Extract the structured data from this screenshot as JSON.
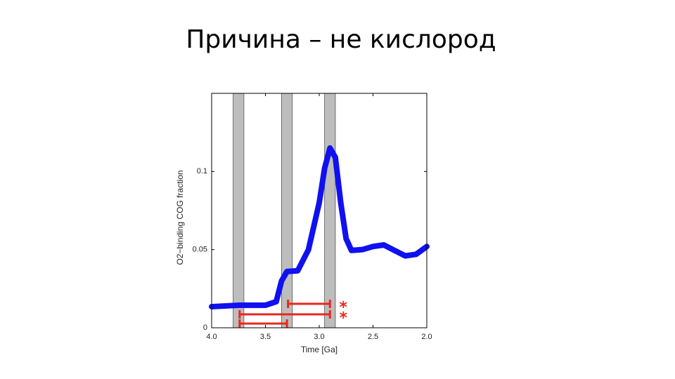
{
  "chart_data": {
    "type": "line",
    "title": "Причина – не кислород",
    "xlabel": "Time [Ga]",
    "ylabel": "O2−binding COG fraction",
    "xlim": [
      4.0,
      2.0
    ],
    "xticks": [
      {
        "value": 4,
        "label": "4.0"
      },
      {
        "value": 3.5,
        "label": "3.5"
      },
      {
        "value": 3,
        "label": "3.0"
      },
      {
        "value": 2.5,
        "label": "2.5"
      },
      {
        "value": 2,
        "label": "2.0"
      }
    ],
    "ylim": [
      0,
      0.15
    ],
    "yticks": [
      0,
      0.05,
      0.1
    ],
    "x": [
      4.0,
      3.75,
      3.5,
      3.4,
      3.35,
      3.3,
      3.2,
      3.1,
      3.0,
      2.95,
      2.9,
      2.85,
      2.8,
      2.75,
      2.7,
      2.6,
      2.5,
      2.4,
      2.3,
      2.2,
      2.1,
      2.0
    ],
    "values": [
      0.0135,
      0.0144,
      0.0144,
      0.0167,
      0.03,
      0.036,
      0.0365,
      0.05,
      0.08,
      0.102,
      0.115,
      0.109,
      0.08,
      0.057,
      0.0495,
      0.05,
      0.052,
      0.053,
      0.0495,
      0.046,
      0.047,
      0.052
    ],
    "color": "#1010f0",
    "bands": [
      [
        3.8,
        3.7
      ],
      [
        3.35,
        3.25
      ],
      [
        2.95,
        2.85
      ]
    ],
    "band_color": "#bdbdbd",
    "intervals": [
      {
        "start": 3.29,
        "end": 2.9,
        "y": 0.0153
      },
      {
        "start": 3.74,
        "end": 2.9,
        "y": 0.0086
      },
      {
        "start": 3.74,
        "end": 3.3,
        "y": 0.0027
      }
    ],
    "interval_color": "#e8281e",
    "annotations": [
      "*",
      "*"
    ]
  }
}
